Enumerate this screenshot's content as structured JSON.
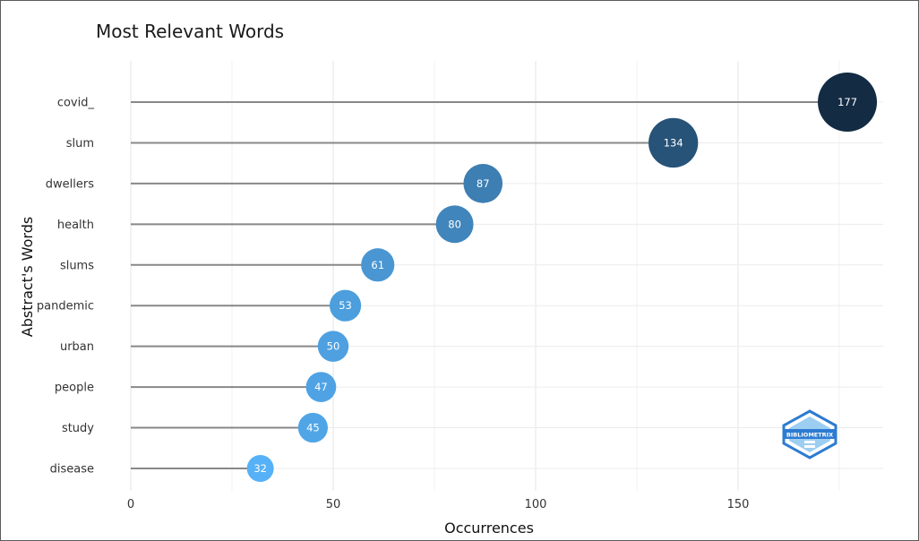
{
  "chart_data": {
    "type": "lollipop",
    "title": "Most Relevant Words",
    "xlabel": "Occurrences",
    "ylabel": "Abstract's Words",
    "categories": [
      "covid_",
      "slum",
      "dwellers",
      "health",
      "slums",
      "pandemic",
      "urban",
      "people",
      "study",
      "disease"
    ],
    "values": [
      177,
      134,
      87,
      80,
      61,
      53,
      50,
      47,
      45,
      32
    ],
    "xlim": [
      0,
      185
    ],
    "xticks": [
      0,
      50,
      100,
      150
    ],
    "grid": true,
    "colors": {
      "low": "#56b1f7",
      "high": "#132b43",
      "stem": "#888888"
    }
  },
  "watermark": {
    "icon": "bibliometrix-logo-icon",
    "text": "BIBLIOMETRIX"
  }
}
